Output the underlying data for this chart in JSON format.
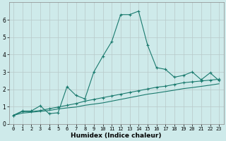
{
  "xlabel": "Humidex (Indice chaleur)",
  "x_values": [
    0,
    1,
    2,
    3,
    4,
    5,
    6,
    7,
    8,
    9,
    10,
    11,
    12,
    13,
    14,
    15,
    16,
    17,
    18,
    19,
    20,
    21,
    22,
    23
  ],
  "main_line": [
    0.5,
    0.75,
    0.75,
    1.05,
    0.6,
    0.65,
    2.15,
    1.65,
    1.45,
    3.0,
    3.9,
    4.75,
    6.3,
    6.3,
    6.5,
    4.55,
    3.25,
    3.15,
    2.7,
    2.8,
    3.0,
    2.55,
    2.95,
    2.5
  ],
  "line2": [
    0.5,
    0.72,
    0.72,
    0.78,
    0.88,
    0.98,
    1.08,
    1.18,
    1.32,
    1.42,
    1.52,
    1.62,
    1.72,
    1.82,
    1.92,
    2.02,
    2.12,
    2.18,
    2.28,
    2.38,
    2.43,
    2.48,
    2.53,
    2.58
  ],
  "line3": [
    0.5,
    0.63,
    0.68,
    0.73,
    0.78,
    0.87,
    0.93,
    0.98,
    1.08,
    1.15,
    1.22,
    1.32,
    1.42,
    1.52,
    1.62,
    1.72,
    1.79,
    1.87,
    1.95,
    2.04,
    2.1,
    2.17,
    2.24,
    2.32
  ],
  "line_color": "#1a7a6e",
  "bg_color": "#ceeaea",
  "grid_color": "#b8c8c8",
  "ylim": [
    0,
    7
  ],
  "xlim": [
    -0.5,
    23.5
  ],
  "yticks": [
    0,
    1,
    2,
    3,
    4,
    5,
    6
  ],
  "xticks": [
    0,
    1,
    2,
    3,
    4,
    5,
    6,
    7,
    8,
    9,
    10,
    11,
    12,
    13,
    14,
    15,
    16,
    17,
    18,
    19,
    20,
    21,
    22,
    23
  ],
  "tick_fontsize": 5.0,
  "label_fontsize": 6.5
}
